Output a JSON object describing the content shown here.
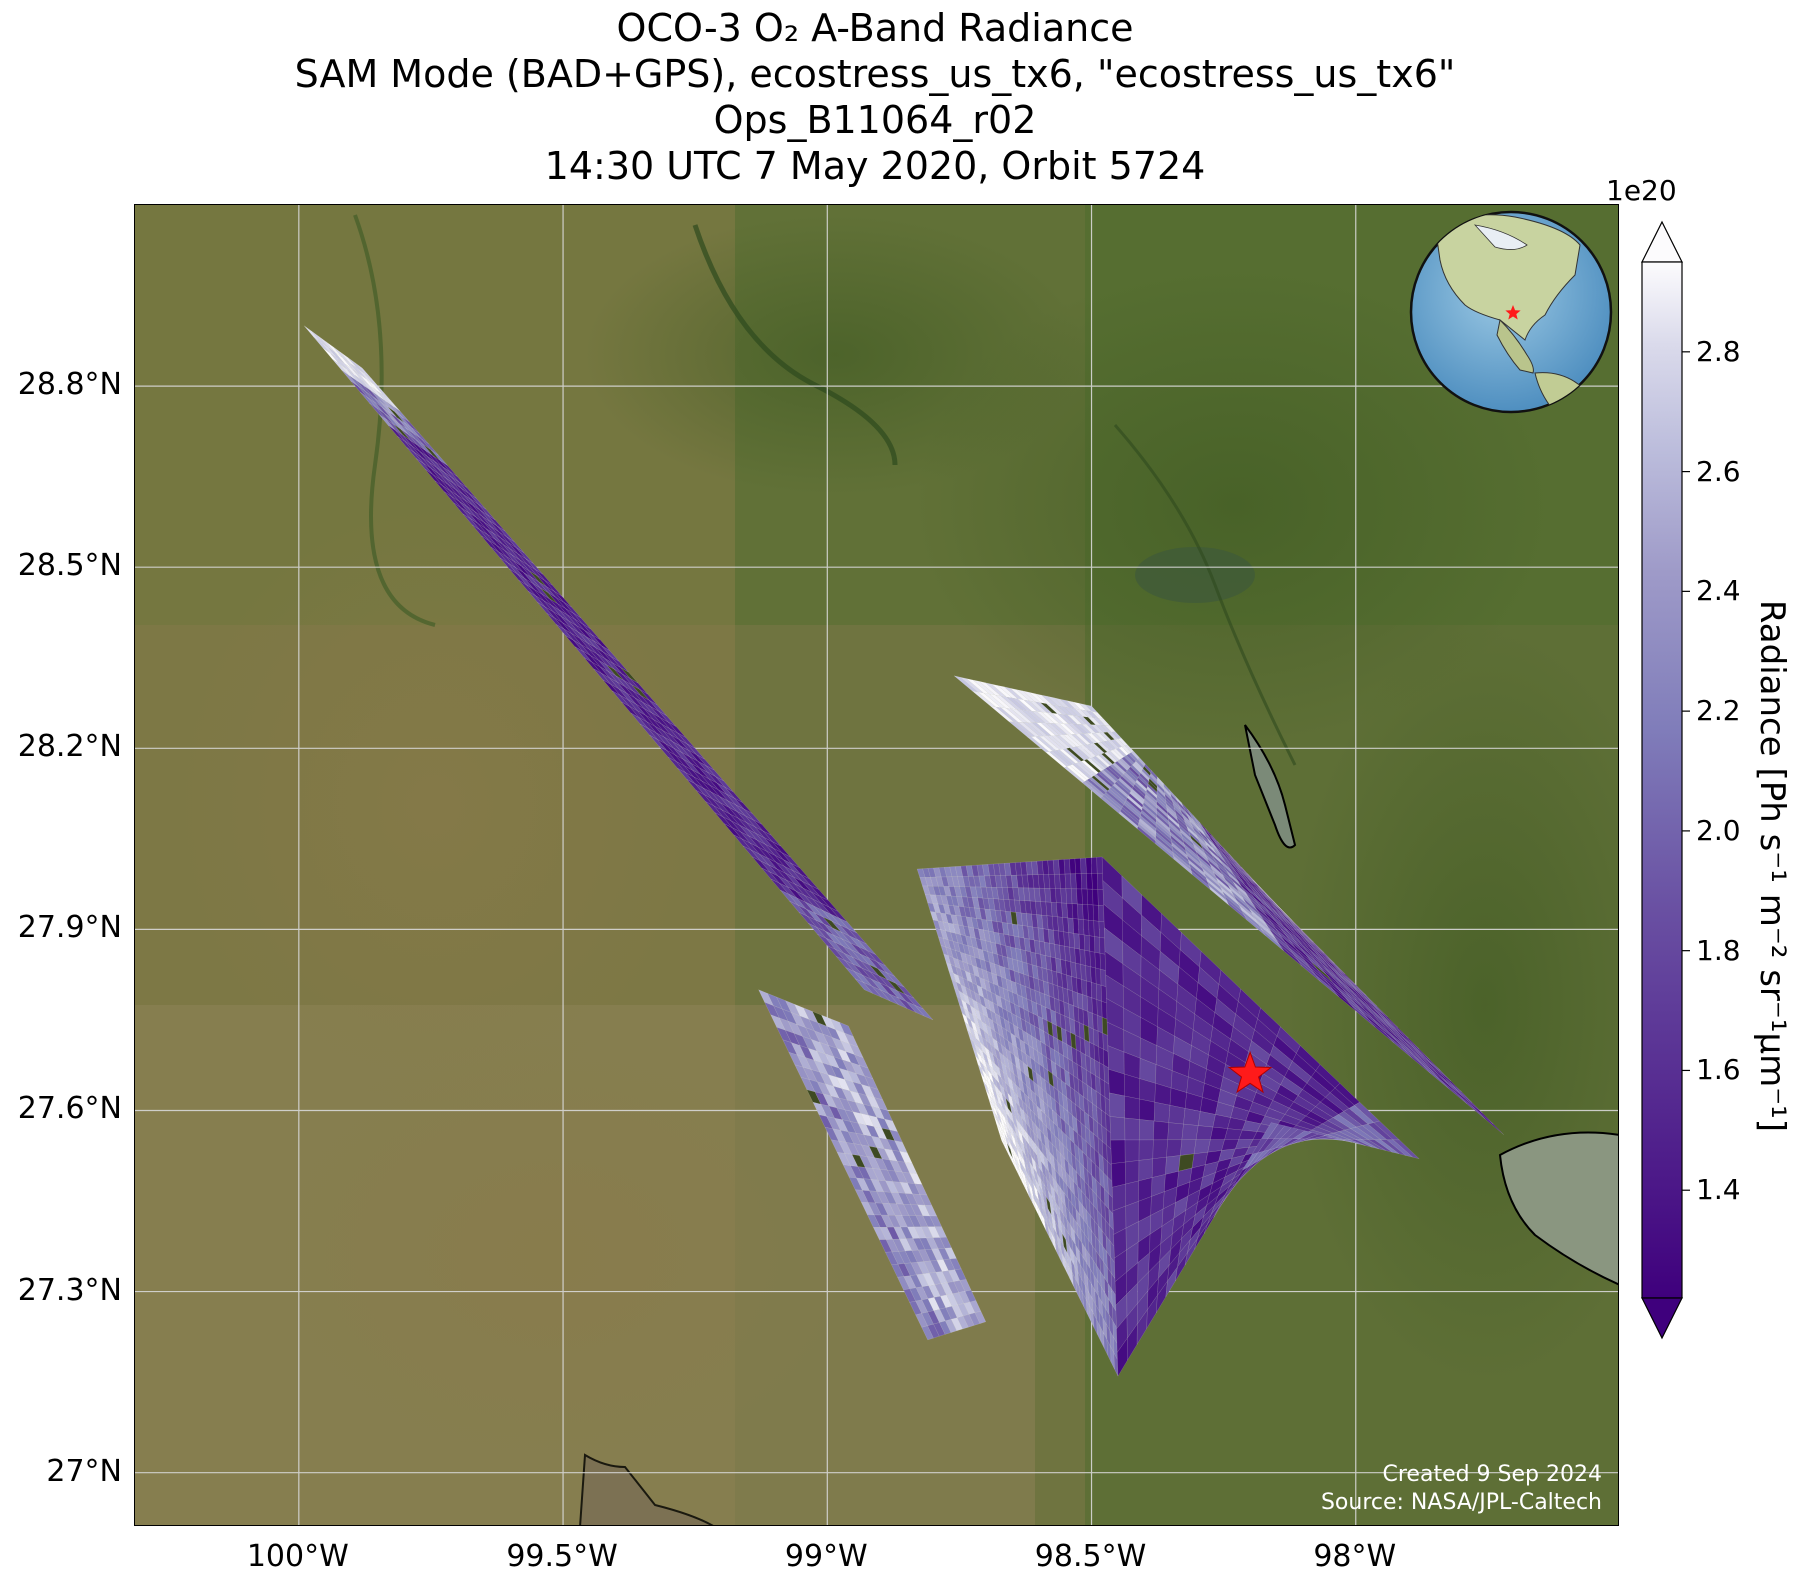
{
  "title": {
    "line1": "OCO-3 O₂ A-Band Radiance",
    "line2": "SAM Mode (BAD+GPS), ecostress_us_tx6, \"ecostress_us_tx6\"",
    "line3": "Ops_B11064_r02",
    "line4": "14:30 UTC 7 May 2020, Orbit 5724"
  },
  "map": {
    "x_ticks": [
      "100°W",
      "99.5°W",
      "99°W",
      "98.5°W",
      "98°W"
    ],
    "y_ticks": [
      "28.8°N",
      "28.5°N",
      "28.2°N",
      "27.9°N",
      "27.6°N",
      "27.3°N",
      "27°N"
    ],
    "lon_range": [
      -100.31,
      -97.5
    ],
    "lat_range": [
      26.91,
      29.1
    ],
    "target_marker": {
      "lon": -98.2,
      "lat": 27.66,
      "symbol": "red-star",
      "color": "#ff1a1a"
    },
    "inset": "globe-north-america-with-red-star",
    "credit": {
      "created": "Created 9 Sep 2024",
      "source": "Source: NASA/JPL-Caltech"
    }
  },
  "chart_data": {
    "type": "heatmap",
    "variable": "Radiance",
    "colormap": "Purples_r",
    "colorbar": {
      "ticks": [
        "1.4",
        "1.6",
        "1.8",
        "2.0",
        "2.2",
        "2.4",
        "2.6",
        "2.8"
      ],
      "exponent_label": "1e20",
      "label": "Radiance [Ph s⁻¹ m⁻² sr⁻¹μm⁻¹]",
      "range": [
        1.22,
        2.95
      ],
      "extend": "both"
    },
    "swaths": [
      {
        "name": "swath-nw-long",
        "corners": [
          [
            -99.99,
            28.9
          ],
          [
            -99.88,
            28.83
          ],
          [
            -98.8,
            27.75
          ],
          [
            -98.93,
            27.8
          ]
        ]
      },
      {
        "name": "swath-sw-small",
        "corners": [
          [
            -99.13,
            27.8
          ],
          [
            -98.96,
            27.74
          ],
          [
            -98.7,
            27.25
          ],
          [
            -98.81,
            27.22
          ]
        ]
      },
      {
        "name": "swath-main",
        "corners": [
          [
            -98.83,
            28.0
          ],
          [
            -98.48,
            28.02
          ],
          [
            -98.15,
            27.77
          ],
          [
            -97.88,
            27.52
          ],
          [
            -98.16,
            27.58
          ],
          [
            -98.23,
            27.4
          ],
          [
            -98.45,
            27.16
          ],
          [
            -98.32,
            27.11
          ],
          [
            -98.67,
            27.55
          ],
          [
            -98.89,
            27.77
          ]
        ]
      },
      {
        "name": "swath-ne-upper",
        "corners": [
          [
            -98.76,
            28.32
          ],
          [
            -98.5,
            28.27
          ],
          [
            -98.16,
            27.95
          ],
          [
            -97.72,
            27.56
          ],
          [
            -97.93,
            27.54
          ],
          [
            -98.38,
            27.85
          ],
          [
            -98.55,
            28.11
          ]
        ]
      }
    ]
  }
}
